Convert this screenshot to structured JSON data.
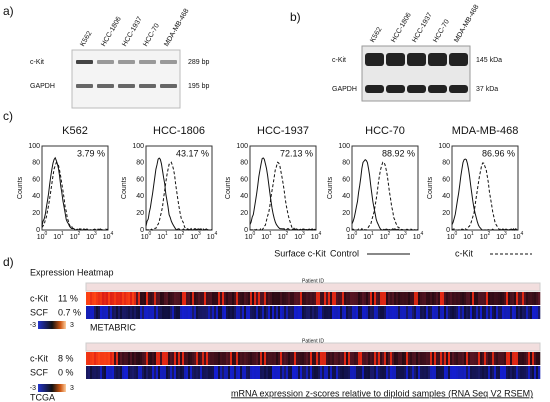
{
  "panels": {
    "a": {
      "label": "a)",
      "lanes": [
        "K562",
        "HCC-1806",
        "HCC-1937",
        "HCC-70",
        "MDA-MB-468"
      ],
      "rows": [
        {
          "name": "c-Kit",
          "size": "289 bp"
        },
        {
          "name": "GAPDH",
          "size": "195 bp"
        }
      ]
    },
    "b": {
      "label": "b)",
      "lanes": [
        "K562",
        "HCC-1806",
        "HCC-1937",
        "HCC-70",
        "MDA-MB-468"
      ],
      "rows": [
        {
          "name": "c-Kit",
          "size": "145 kDa"
        },
        {
          "name": "GAPDH",
          "size": "37 kDa"
        }
      ]
    },
    "c": {
      "label": "c)",
      "histograms": [
        {
          "title": "K562",
          "percent": "3.79 %"
        },
        {
          "title": "HCC-1806",
          "percent": "43.17 %"
        },
        {
          "title": "HCC-1937",
          "percent": "72.13 %"
        },
        {
          "title": "HCC-70",
          "percent": "88.92 %"
        },
        {
          "title": "MDA-MB-468",
          "percent": "86.96 %"
        }
      ],
      "y_axis_label": "Counts",
      "yticks": [
        "0",
        "20",
        "40",
        "60",
        "80",
        "100"
      ],
      "x_tick_base": "10",
      "x_tick_exponents": [
        "0",
        "1",
        "2",
        "3",
        "4"
      ],
      "x_axis_label": "Surface c-Kit",
      "legend": [
        "Control",
        "c-Kit"
      ]
    },
    "d": {
      "label": "d)",
      "title": "Expression Heatmap",
      "heatmaps": [
        {
          "header": "Patient ID",
          "rows": [
            {
              "gene": "c-Kit",
              "percent": "11 %"
            },
            {
              "gene": "SCF",
              "percent": "0.7 %"
            }
          ],
          "dataset": "METABRIC"
        },
        {
          "header": "Patient ID",
          "rows": [
            {
              "gene": "c-Kit",
              "percent": "8 %"
            },
            {
              "gene": "SCF",
              "percent": "0 %"
            }
          ],
          "dataset": "TCGA"
        }
      ],
      "scale_min": "-3",
      "scale_max": "3",
      "caption": "mRNA expression z-scores relative to diploid samples (RNA Seq V2 RSEM)"
    }
  }
}
